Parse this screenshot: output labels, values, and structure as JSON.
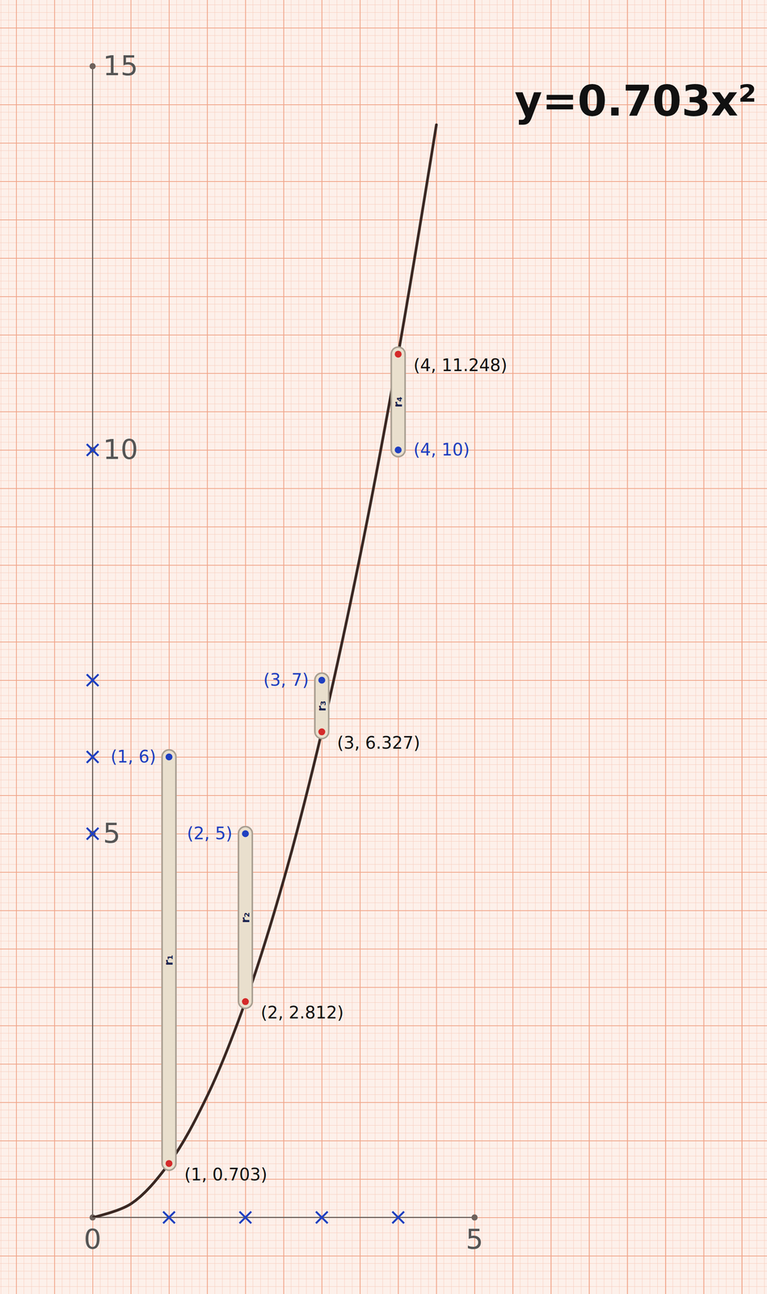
{
  "chart_data": {
    "type": "scatter",
    "annotation": "y=0.703x²",
    "x": [
      1,
      2,
      3,
      4
    ],
    "series": [
      {
        "color": "#1f3fc0",
        "marker": "dot",
        "values": [
          6,
          5,
          7,
          10
        ],
        "value_labels": [
          "(1, 6)",
          "(2, 5)",
          "(3, 7)",
          "(4, 10)"
        ]
      },
      {
        "color": "#d42a2a",
        "marker": "dot",
        "values": [
          0.703,
          2.812,
          6.327,
          11.248
        ],
        "value_labels": [
          "(1, 0.703)",
          "(2, 2.812)",
          "(3, 6.327)",
          "(4, 11.248)"
        ]
      }
    ],
    "residuals": {
      "labels": [
        "r₁",
        "r₂",
        "r₃",
        "r₄"
      ],
      "color": "#e9dfcd"
    },
    "curve": {
      "type": "line",
      "color": "#3a2823",
      "line_style": "solid",
      "x": [
        0,
        0.5,
        1,
        1.5,
        2,
        2.5,
        3,
        3.5,
        4,
        4.5
      ],
      "values": [
        0,
        0.176,
        0.703,
        1.582,
        2.812,
        4.394,
        6.327,
        8.612,
        11.248,
        14.236
      ]
    },
    "xlim": [
      0,
      5
    ],
    "ylim": [
      0,
      15
    ],
    "xticks": [
      0,
      5
    ],
    "yticks": [
      5,
      10,
      15
    ],
    "grid": true
  }
}
